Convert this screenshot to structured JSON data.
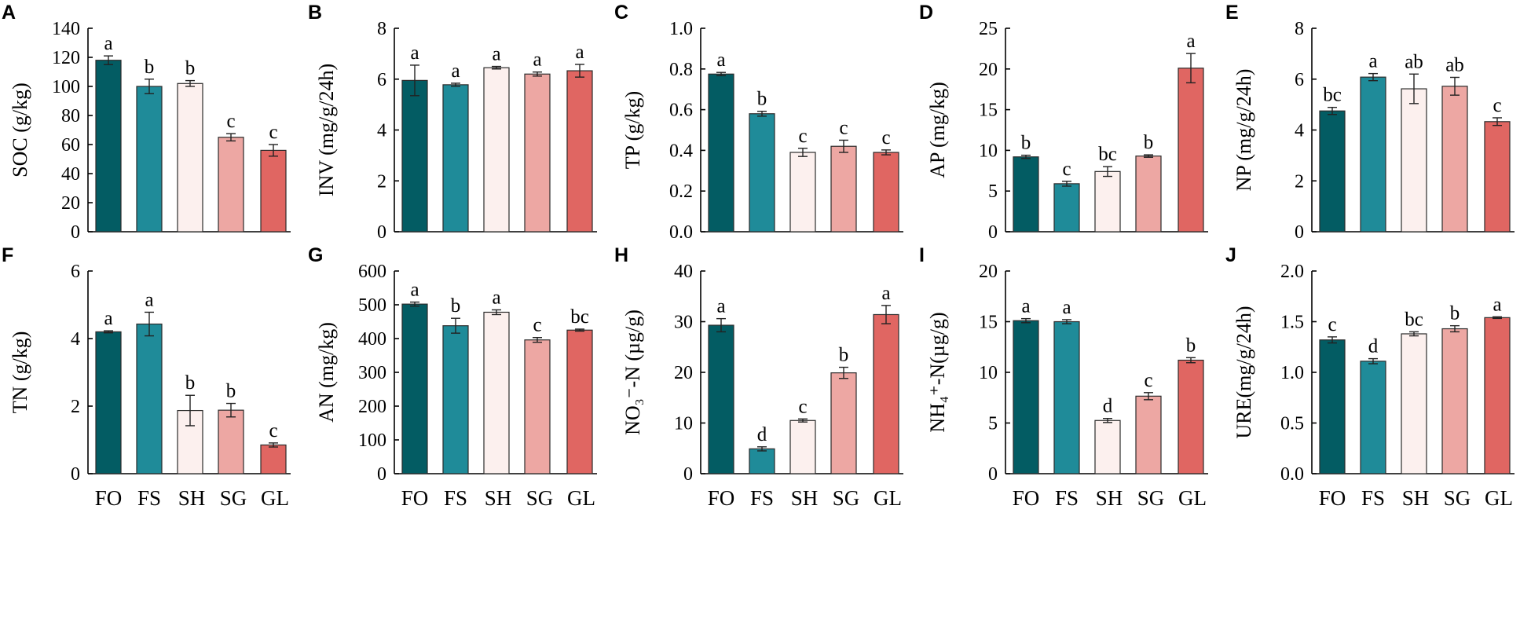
{
  "chart_data": [
    {
      "panel": "A",
      "type": "bar",
      "ylabel": "SOC (g/kg)",
      "ylim": [
        0,
        140
      ],
      "ticks": [
        "0",
        "20",
        "40",
        "60",
        "80",
        "100",
        "120",
        "140"
      ],
      "categories": [
        "FO",
        "FS",
        "SH",
        "SG",
        "GL"
      ],
      "values": [
        118,
        100,
        102,
        65,
        56
      ],
      "errors": [
        3,
        5,
        2,
        2.5,
        4
      ],
      "sig": [
        "a",
        "b",
        "b",
        "c",
        "c"
      ]
    },
    {
      "panel": "B",
      "type": "bar",
      "ylabel": "INV (mg/g/24h)",
      "ylim": [
        0,
        8
      ],
      "ticks": [
        "0",
        "2",
        "4",
        "6",
        "8"
      ],
      "categories": [
        "FO",
        "FS",
        "SH",
        "SG",
        "GL"
      ],
      "values": [
        5.95,
        5.78,
        6.45,
        6.2,
        6.33
      ],
      "errors": [
        0.6,
        0.06,
        0.05,
        0.08,
        0.25
      ],
      "sig": [
        "a",
        "a",
        "a",
        "a",
        "a"
      ]
    },
    {
      "panel": "C",
      "type": "bar",
      "ylabel": "TP (g/kg)",
      "ylim": [
        0,
        1.0
      ],
      "ticks": [
        "0.0",
        "0.2",
        "0.4",
        "0.6",
        "0.8",
        "1.0"
      ],
      "categories": [
        "FO",
        "FS",
        "SH",
        "SG",
        "GL"
      ],
      "values": [
        0.775,
        0.58,
        0.39,
        0.42,
        0.39
      ],
      "errors": [
        0.008,
        0.012,
        0.02,
        0.03,
        0.012
      ],
      "sig": [
        "a",
        "b",
        "c",
        "c",
        "c"
      ]
    },
    {
      "panel": "D",
      "type": "bar",
      "ylabel": "AP (mg/kg)",
      "ylim": [
        0,
        25
      ],
      "ticks": [
        "0",
        "5",
        "10",
        "15",
        "20",
        "25"
      ],
      "categories": [
        "FO",
        "FS",
        "SH",
        "SG",
        "GL"
      ],
      "values": [
        9.2,
        5.9,
        7.4,
        9.3,
        20.1
      ],
      "errors": [
        0.2,
        0.3,
        0.6,
        0.15,
        1.8
      ],
      "sig": [
        "b",
        "c",
        "bc",
        "b",
        "a"
      ]
    },
    {
      "panel": "E",
      "type": "bar",
      "ylabel": "NP (mg/g/24h)",
      "ylim": [
        0,
        8
      ],
      "ticks": [
        "0",
        "2",
        "4",
        "6",
        "8"
      ],
      "categories": [
        "FO",
        "FS",
        "SH",
        "SG",
        "GL"
      ],
      "values": [
        4.75,
        6.08,
        5.62,
        5.72,
        4.33
      ],
      "errors": [
        0.14,
        0.14,
        0.58,
        0.35,
        0.15
      ],
      "sig": [
        "bc",
        "a",
        "ab",
        "ab",
        "c"
      ]
    },
    {
      "panel": "F",
      "type": "bar",
      "ylabel": "TN (g/kg)",
      "ylim": [
        0,
        6
      ],
      "ticks": [
        "0",
        "2",
        "4",
        "6"
      ],
      "categories": [
        "FO",
        "FS",
        "SH",
        "SG",
        "GL"
      ],
      "values": [
        4.2,
        4.43,
        1.87,
        1.88,
        0.85
      ],
      "errors": [
        0.03,
        0.35,
        0.45,
        0.2,
        0.06
      ],
      "sig": [
        "a",
        "a",
        "b",
        "b",
        "c"
      ]
    },
    {
      "panel": "G",
      "type": "bar",
      "ylabel": "AN (mg/kg)",
      "ylim": [
        0,
        600
      ],
      "ticks": [
        "0",
        "100",
        "200",
        "300",
        "400",
        "500",
        "600"
      ],
      "categories": [
        "FO",
        "FS",
        "SH",
        "SG",
        "GL"
      ],
      "values": [
        502,
        438,
        478,
        396,
        425
      ],
      "errors": [
        6,
        22,
        7,
        7,
        3
      ],
      "sig": [
        "a",
        "b",
        "a",
        "c",
        "bc"
      ]
    },
    {
      "panel": "H",
      "type": "bar",
      "ylabel": "NO₃⁻-N (µg/g)",
      "ylim": [
        0,
        40
      ],
      "ticks": [
        "0",
        "10",
        "20",
        "30",
        "40"
      ],
      "categories": [
        "FO",
        "FS",
        "SH",
        "SG",
        "GL"
      ],
      "values": [
        29.3,
        4.9,
        10.5,
        19.9,
        31.4
      ],
      "errors": [
        1.3,
        0.4,
        0.3,
        1.1,
        1.8
      ],
      "sig": [
        "a",
        "d",
        "c",
        "b",
        "a"
      ]
    },
    {
      "panel": "I",
      "type": "bar",
      "ylabel": "NH₄⁺-N(µg/g)",
      "ylim": [
        0,
        20
      ],
      "ticks": [
        "0",
        "5",
        "10",
        "15",
        "20"
      ],
      "categories": [
        "FO",
        "FS",
        "SH",
        "SG",
        "GL"
      ],
      "values": [
        15.1,
        15.0,
        5.25,
        7.65,
        11.2
      ],
      "errors": [
        0.2,
        0.2,
        0.2,
        0.35,
        0.25
      ],
      "sig": [
        "a",
        "a",
        "d",
        "c",
        "b"
      ]
    },
    {
      "panel": "J",
      "type": "bar",
      "ylabel": "URE(mg/g/24h)",
      "ylim": [
        0,
        2.0
      ],
      "ticks": [
        "0.0",
        "0.5",
        "1.0",
        "1.5",
        "2.0"
      ],
      "categories": [
        "FO",
        "FS",
        "SH",
        "SG",
        "GL"
      ],
      "values": [
        1.32,
        1.11,
        1.38,
        1.43,
        1.54
      ],
      "errors": [
        0.03,
        0.025,
        0.02,
        0.03,
        0.008
      ],
      "sig": [
        "c",
        "d",
        "bc",
        "b",
        "a"
      ]
    }
  ],
  "colors": {
    "FO": "#035c63",
    "FS": "#1f8b99",
    "SH": "#fcf0ee",
    "SG": "#eda7a3",
    "GL": "#e06662"
  }
}
